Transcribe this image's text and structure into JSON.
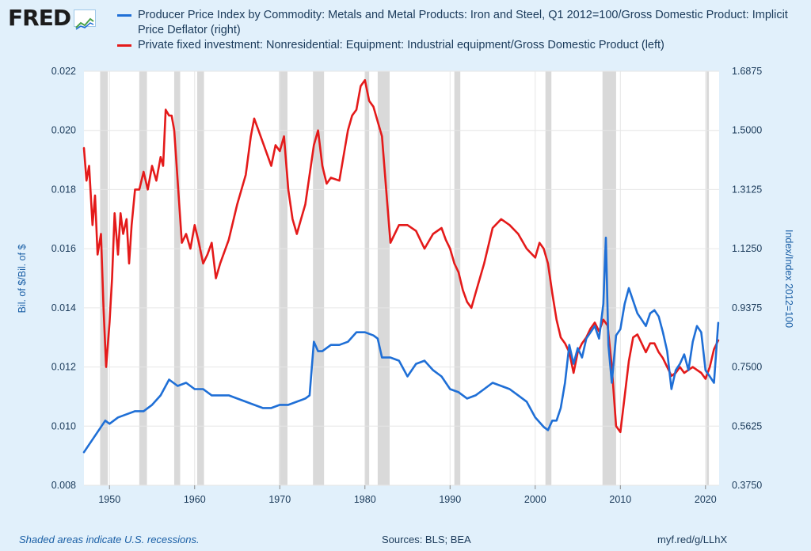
{
  "header": {
    "logo_text": "FRED"
  },
  "legend": [
    {
      "color": "#1f6fd6",
      "label": "Producer Price Index by Commodity: Metals and Metal Products: Iron and Steel, Q1 2012=100/Gross Domestic Product: Implicit Price Deflator (right)"
    },
    {
      "color": "#e41a1a",
      "label": "Private fixed investment: Nonresidential: Equipment: Industrial equipment/Gross Domestic Product (left)"
    }
  ],
  "footer": {
    "note": "Shaded areas indicate U.S. recessions.",
    "sources": "Sources: BLS; BEA",
    "link": "myf.red/g/LLhX"
  },
  "chart_data": {
    "type": "line",
    "title": "",
    "xlabel": "",
    "ylabel_left": "Bil. of $/Bil. of $",
    "ylabel_right": "Index/Index 2012=100",
    "xlim": [
      1947,
      2021.6
    ],
    "ylim_left": [
      0.008,
      0.022
    ],
    "ylim_right": [
      0.375,
      1.6875
    ],
    "x_ticks": [
      "1950",
      "1960",
      "1970",
      "1980",
      "1990",
      "2000",
      "2010",
      "2020"
    ],
    "y_left_ticks": [
      "0.008",
      "0.010",
      "0.012",
      "0.014",
      "0.016",
      "0.018",
      "0.020",
      "0.022"
    ],
    "y_right_ticks": [
      "0.3750",
      "0.5625",
      "0.7500",
      "0.9375",
      "1.1250",
      "1.3125",
      "1.5000",
      "1.6875"
    ],
    "grid": true,
    "recessions": [
      [
        1948.9,
        1949.8
      ],
      [
        1953.5,
        1954.4
      ],
      [
        1957.6,
        1958.3
      ],
      [
        1960.3,
        1961.1
      ],
      [
        1969.9,
        1970.9
      ],
      [
        1973.9,
        1975.2
      ],
      [
        1980.0,
        1980.5
      ],
      [
        1981.5,
        1982.9
      ],
      [
        1990.5,
        1991.2
      ],
      [
        2001.2,
        2001.9
      ],
      [
        2007.9,
        2009.5
      ],
      [
        2020.1,
        2020.4
      ]
    ],
    "series": [
      {
        "name": "Private fixed investment: Nonresidential: Equipment: Industrial equipment/Gross Domestic Product (left)",
        "axis": "left",
        "color": "#e41a1a",
        "x": [
          1947,
          1947.3,
          1947.6,
          1948,
          1948.3,
          1948.6,
          1949,
          1949.3,
          1949.6,
          1950,
          1950.3,
          1950.6,
          1951,
          1951.3,
          1951.6,
          1952,
          1952.3,
          1952.6,
          1953,
          1953.5,
          1954,
          1954.5,
          1955,
          1955.5,
          1956,
          1956.3,
          1956.6,
          1957,
          1957.3,
          1957.6,
          1958,
          1958.5,
          1959,
          1959.5,
          1960,
          1960.5,
          1961,
          1961.5,
          1962,
          1962.5,
          1963,
          1964,
          1965,
          1966,
          1966.6,
          1967,
          1967.5,
          1968,
          1969,
          1969.5,
          1970,
          1970.5,
          1971,
          1971.5,
          1972,
          1972.5,
          1973,
          1973.5,
          1974,
          1974.5,
          1975,
          1975.5,
          1976,
          1977,
          1978,
          1978.5,
          1979,
          1979.5,
          1980,
          1980.5,
          1981,
          1981.5,
          1982,
          1982.5,
          1983,
          1983.5,
          1984,
          1985,
          1986,
          1987,
          1988,
          1989,
          1989.5,
          1990,
          1990.5,
          1991,
          1991.5,
          1992,
          1992.5,
          1993,
          1994,
          1995,
          1996,
          1997,
          1998,
          1999,
          2000,
          2000.5,
          2001,
          2001.5,
          2002,
          2002.5,
          2003,
          2003.5,
          2004,
          2004.5,
          2005,
          2005.5,
          2006,
          2006.5,
          2007,
          2007.5,
          2008,
          2008.5,
          2009,
          2009.5,
          2010,
          2010.5,
          2011,
          2011.5,
          2012,
          2012.5,
          2013,
          2013.5,
          2014,
          2014.5,
          2015,
          2015.5,
          2016,
          2016.5,
          2017,
          2017.5,
          2018,
          2018.5,
          2019,
          2019.5,
          2020,
          2020.5,
          2021,
          2021.5
        ],
        "values": [
          0.0194,
          0.0183,
          0.0188,
          0.0168,
          0.0178,
          0.0158,
          0.0165,
          0.014,
          0.012,
          0.0135,
          0.015,
          0.0172,
          0.0158,
          0.0172,
          0.0165,
          0.017,
          0.0155,
          0.0168,
          0.018,
          0.018,
          0.0186,
          0.018,
          0.0188,
          0.0183,
          0.0191,
          0.0188,
          0.0207,
          0.0205,
          0.0205,
          0.02,
          0.0183,
          0.0162,
          0.0165,
          0.016,
          0.0168,
          0.0162,
          0.0155,
          0.0158,
          0.0162,
          0.015,
          0.0155,
          0.0163,
          0.0175,
          0.0185,
          0.0198,
          0.0204,
          0.02,
          0.0196,
          0.0188,
          0.0195,
          0.0193,
          0.0198,
          0.018,
          0.017,
          0.0165,
          0.017,
          0.0175,
          0.0185,
          0.0195,
          0.02,
          0.0188,
          0.0182,
          0.0184,
          0.0183,
          0.02,
          0.0205,
          0.0207,
          0.0215,
          0.0217,
          0.021,
          0.0208,
          0.0203,
          0.0198,
          0.018,
          0.0162,
          0.0165,
          0.0168,
          0.0168,
          0.0166,
          0.016,
          0.0165,
          0.0167,
          0.0163,
          0.016,
          0.0155,
          0.0152,
          0.0146,
          0.0142,
          0.014,
          0.0145,
          0.0155,
          0.0167,
          0.017,
          0.0168,
          0.0165,
          0.016,
          0.0157,
          0.0162,
          0.016,
          0.0155,
          0.0145,
          0.0136,
          0.013,
          0.0128,
          0.0125,
          0.0118,
          0.0125,
          0.0128,
          0.013,
          0.0133,
          0.0135,
          0.0132,
          0.0136,
          0.0134,
          0.012,
          0.01,
          0.0098,
          0.011,
          0.0122,
          0.013,
          0.0131,
          0.0128,
          0.0125,
          0.0128,
          0.0128,
          0.0125,
          0.0123,
          0.012,
          0.0117,
          0.0118,
          0.012,
          0.0118,
          0.0119,
          0.012,
          0.0119,
          0.0118,
          0.0116,
          0.012,
          0.0126,
          0.0129
        ]
      },
      {
        "name": "Producer Price Index by Commodity: Metals and Metal Products: Iron and Steel, Q1 2012=100/Gross Domestic Product: Implicit Price Deflator (right)",
        "axis": "right",
        "color": "#1f6fd6",
        "x": [
          1947,
          1948,
          1949,
          1949.5,
          1950,
          1951,
          1952,
          1953,
          1954,
          1955,
          1956,
          1957,
          1957.5,
          1958,
          1959,
          1960,
          1961,
          1962,
          1963,
          1964,
          1965,
          1966,
          1967,
          1968,
          1969,
          1970,
          1971,
          1972,
          1973,
          1973.5,
          1974,
          1974.5,
          1975,
          1976,
          1977,
          1978,
          1979,
          1980,
          1981,
          1981.5,
          1982,
          1983,
          1984,
          1985,
          1986,
          1987,
          1988,
          1989,
          1990,
          1991,
          1992,
          1993,
          1994,
          1995,
          1996,
          1997,
          1998,
          1999,
          2000,
          2001,
          2001.5,
          2002,
          2002.5,
          2003,
          2003.5,
          2004,
          2004.5,
          2005,
          2005.5,
          2006,
          2006.5,
          2007,
          2007.5,
          2008,
          2008.3,
          2008.6,
          2009,
          2009.5,
          2010,
          2010.5,
          2011,
          2011.5,
          2012,
          2012.5,
          2013,
          2013.5,
          2014,
          2014.5,
          2015,
          2015.5,
          2016,
          2016.5,
          2017,
          2017.5,
          2018,
          2018.5,
          2019,
          2019.5,
          2020,
          2020.5,
          2021,
          2021.5
        ],
        "values": [
          0.48,
          0.52,
          0.56,
          0.58,
          0.57,
          0.59,
          0.6,
          0.61,
          0.61,
          0.63,
          0.66,
          0.71,
          0.7,
          0.69,
          0.7,
          0.68,
          0.68,
          0.66,
          0.66,
          0.66,
          0.65,
          0.64,
          0.63,
          0.62,
          0.62,
          0.63,
          0.63,
          0.64,
          0.65,
          0.66,
          0.83,
          0.8,
          0.8,
          0.82,
          0.82,
          0.83,
          0.86,
          0.86,
          0.85,
          0.84,
          0.78,
          0.78,
          0.77,
          0.72,
          0.76,
          0.77,
          0.74,
          0.72,
          0.68,
          0.67,
          0.65,
          0.66,
          0.68,
          0.7,
          0.69,
          0.68,
          0.66,
          0.64,
          0.59,
          0.56,
          0.55,
          0.58,
          0.58,
          0.62,
          0.7,
          0.82,
          0.76,
          0.81,
          0.78,
          0.84,
          0.86,
          0.88,
          0.84,
          0.95,
          1.16,
          0.82,
          0.7,
          0.85,
          0.87,
          0.95,
          1.0,
          0.96,
          0.92,
          0.9,
          0.88,
          0.92,
          0.93,
          0.91,
          0.86,
          0.8,
          0.68,
          0.74,
          0.76,
          0.79,
          0.74,
          0.83,
          0.88,
          0.86,
          0.74,
          0.72,
          0.7,
          0.89
        ]
      }
    ]
  }
}
